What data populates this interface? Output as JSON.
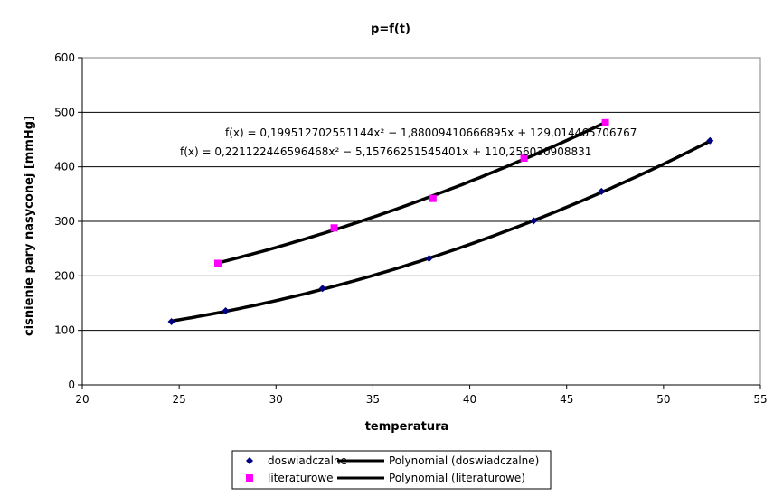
{
  "chart_data": {
    "type": "scatter",
    "title": "p=f(t)",
    "xlabel": "temperatura",
    "ylabel": "cisnienie pary nasyconej [mmHg]",
    "xlim": [
      20,
      55
    ],
    "ylim": [
      0,
      600
    ],
    "x_ticks": [
      "20",
      "25",
      "30",
      "35",
      "40",
      "45",
      "50",
      "55"
    ],
    "y_ticks": [
      "0",
      "100",
      "200",
      "300",
      "400",
      "500",
      "600"
    ],
    "grid": "horizontal",
    "legend_position": "bottom",
    "series": [
      {
        "name": "doswiadczalne",
        "marker": "diamond",
        "color": "#000080",
        "x": [
          24.6,
          27.4,
          32.4,
          37.9,
          43.3,
          46.8,
          52.4
        ],
        "y": [
          116,
          136,
          177,
          232,
          301,
          355,
          448
        ]
      },
      {
        "name": "literaturowe",
        "marker": "square",
        "color": "#ff00ff",
        "x": [
          27.0,
          33.0,
          38.1,
          42.8,
          47.0
        ],
        "y": [
          223,
          288,
          342,
          416,
          481
        ]
      }
    ],
    "trendlines": [
      {
        "name": "Polynomial (doswiadczalne)",
        "equation": "f(x) = 0,221122446596468x² − 5,15766251545401x + 110,256030908831",
        "coefficients": [
          0.221122446596468,
          -5.15766251545401,
          110.256030908831
        ],
        "xrange": [
          24.6,
          52.4
        ],
        "color": "#000000"
      },
      {
        "name": "Polynomial (literaturowe)",
        "equation": "f(x) = 0,199512702551144x² − 1,88009410666895x + 129,014465706767",
        "coefficients": [
          0.199512702551144,
          -1.88009410666895,
          129.014465706767
        ],
        "xrange": [
          27.0,
          47.0
        ],
        "color": "#000000"
      }
    ],
    "legend": [
      {
        "label": "doswiadczalne",
        "type": "marker-diamond",
        "color": "#000080"
      },
      {
        "label": "Polynomial (doswiadczalne)",
        "type": "line",
        "color": "#000000"
      },
      {
        "label": "literaturowe",
        "type": "marker-square",
        "color": "#ff00ff"
      },
      {
        "label": "Polynomial (literaturowe)",
        "type": "line",
        "color": "#000000"
      }
    ]
  }
}
